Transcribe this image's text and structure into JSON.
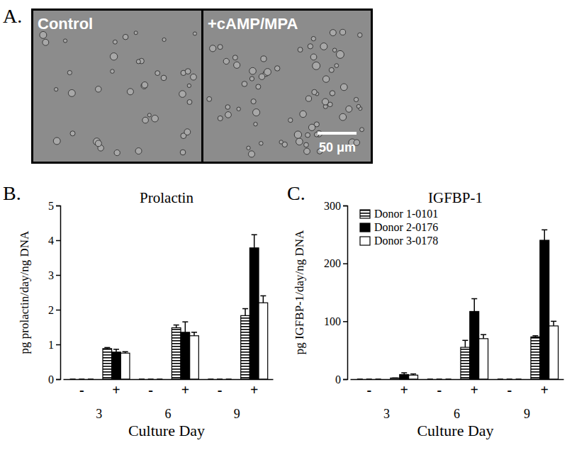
{
  "image_panel": {
    "label": "A.",
    "images": [
      {
        "label": "Control"
      },
      {
        "label": "+cAMP/MPA"
      }
    ],
    "scale_bar": "50 μm"
  },
  "chart_data": [
    {
      "type": "bar",
      "title": "Prolactin",
      "annotations": [
        "B."
      ],
      "y_label": "pg prolactin/day/ng DNA",
      "x_label": "Culture Day",
      "categories": [
        "-",
        "+",
        "-",
        "+",
        "-",
        "+"
      ],
      "category_groups": [
        3,
        6,
        9
      ],
      "ylim": [
        0,
        5
      ],
      "yticks": [
        0,
        1,
        2,
        3,
        4,
        5
      ],
      "series": [
        {
          "name": "Donor 1-0101",
          "color": "#ffffff",
          "marker": "striped",
          "values": [
            0,
            0.88,
            0,
            1.48,
            0,
            1.83
          ],
          "errors": [
            0,
            0.03,
            0,
            0.08,
            0,
            0.2
          ]
        },
        {
          "name": "Donor 2-0176",
          "color": "#000000",
          "marker": "solid",
          "values": [
            0,
            0.78,
            0,
            1.35,
            0,
            3.78
          ],
          "errors": [
            0,
            0.08,
            0,
            0.3,
            0,
            0.38
          ]
        },
        {
          "name": "Donor 3-0178",
          "color": "#ffffff",
          "marker": "solid",
          "values": [
            0,
            0.75,
            0,
            1.25,
            0,
            2.2
          ],
          "errors": [
            0,
            0.04,
            0,
            0.1,
            0,
            0.2
          ]
        }
      ]
    },
    {
      "type": "bar",
      "title": "IGFBP-1",
      "annotations": [
        "C."
      ],
      "y_label": "pg IGFBP-1/day/ng DNA",
      "x_label": "Culture Day",
      "categories": [
        "-",
        "+",
        "-",
        "+",
        "-",
        "+"
      ],
      "category_groups": [
        3,
        6,
        9
      ],
      "ylim": [
        0,
        300
      ],
      "yticks": [
        0,
        100,
        200,
        300
      ],
      "legend": "top-left",
      "series": [
        {
          "name": "Donor 1-0101",
          "color": "#ffffff",
          "marker": "striped",
          "values": [
            0,
            2,
            0,
            55,
            0,
            73
          ],
          "errors": [
            0,
            0,
            0,
            12,
            0,
            2
          ]
        },
        {
          "name": "Donor 2-0176",
          "color": "#000000",
          "marker": "solid",
          "values": [
            0,
            8,
            0,
            117,
            0,
            240
          ],
          "errors": [
            0,
            3,
            0,
            22,
            0,
            18
          ]
        },
        {
          "name": "Donor 3-0178",
          "color": "#ffffff",
          "marker": "solid",
          "values": [
            0,
            7,
            0,
            70,
            0,
            92
          ],
          "errors": [
            0,
            2,
            0,
            7,
            0,
            8
          ]
        }
      ]
    }
  ]
}
